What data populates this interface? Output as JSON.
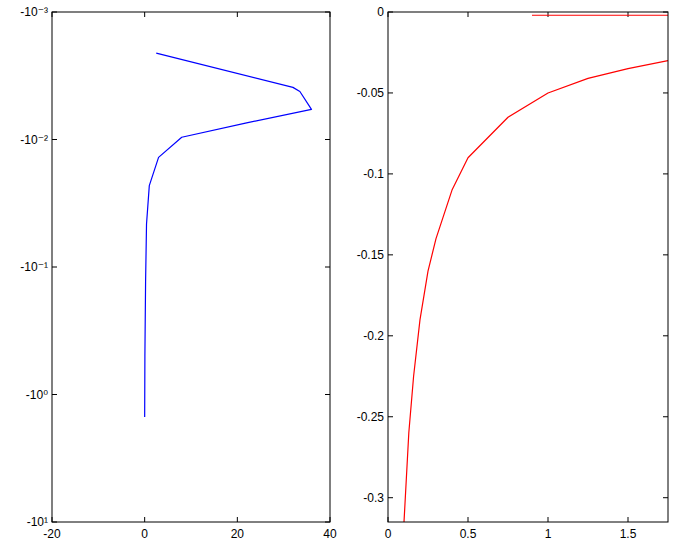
{
  "chart_data": [
    {
      "type": "line",
      "log": "y",
      "xlim": [
        -20,
        40
      ],
      "xticks": [
        -20,
        0,
        20,
        40
      ],
      "ylim": [
        -10,
        -0.001
      ],
      "yticks": [
        {
          "value": -0.001,
          "label": "-10⁻³"
        },
        {
          "value": -0.01,
          "label": "-10⁻²"
        },
        {
          "value": -0.1,
          "label": "-10⁻¹"
        },
        {
          "value": -1,
          "label": "-10⁰"
        },
        {
          "value": -10,
          "label": "-10¹"
        }
      ],
      "x": [
        2.5,
        32,
        33.5,
        36,
        22,
        8,
        3,
        1,
        0.4,
        0.2,
        0.05,
        0
      ],
      "series": [
        {
          "color": "#0000ff",
          "values": [
            -0.0021,
            -0.0039,
            -0.0042,
            -0.0058,
            -0.0074,
            -0.0096,
            -0.0138,
            -0.023,
            -0.046,
            -0.13,
            -0.5,
            -1.5
          ]
        }
      ]
    },
    {
      "type": "line",
      "xlim": [
        0,
        1.75
      ],
      "xticks": [
        0,
        0.5,
        1,
        1.5
      ],
      "ylim": [
        -0.315,
        0
      ],
      "yticks": [
        -0.3,
        -0.25,
        -0.2,
        -0.15,
        -0.1,
        -0.05,
        0
      ],
      "series": [
        {
          "color": "#ff0000",
          "x": [
            0.1,
            0.13,
            0.16,
            0.2,
            0.25,
            0.3,
            0.4,
            0.5,
            0.75,
            1.0,
            1.25,
            1.5,
            1.75
          ],
          "values": [
            -0.315,
            -0.26,
            -0.225,
            -0.19,
            -0.16,
            -0.14,
            -0.11,
            -0.09,
            -0.065,
            -0.05,
            -0.041,
            -0.035,
            -0.03
          ]
        },
        {
          "color": "#ff0000",
          "x": [
            0.9,
            1.75
          ],
          "values": [
            -0.002,
            -0.002
          ]
        }
      ]
    }
  ]
}
